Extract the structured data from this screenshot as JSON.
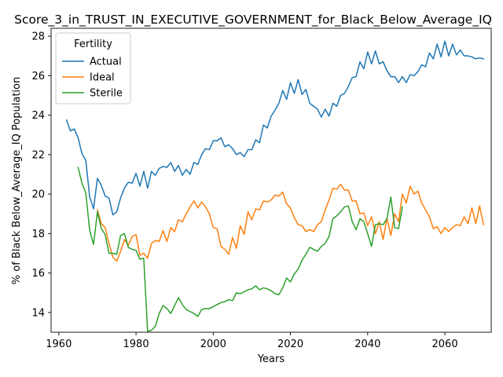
{
  "chart_data": {
    "type": "line",
    "title": "Score_3_in_TRUST_IN_EXECUTIVE_GOVERNMENT_for_Black_Below_Average_IQ",
    "xlabel": "Years",
    "ylabel": "% of Black Below_Average_IQ Population",
    "xlim": [
      1958,
      2072
    ],
    "ylim": [
      13.0,
      28.4
    ],
    "xticks": [
      1960,
      1980,
      2000,
      2020,
      2040,
      2060
    ],
    "yticks": [
      14,
      16,
      18,
      20,
      22,
      24,
      26,
      28
    ],
    "grid": false,
    "legend": {
      "title": "Fertility",
      "placement": "top-left"
    },
    "series": [
      {
        "name": "Actual",
        "color": "#1f77b4",
        "x": [
          1962,
          1963,
          1964,
          1965,
          1966,
          1967,
          1968,
          1969,
          1970,
          1971,
          1972,
          1973,
          1974,
          1975,
          1976,
          1977,
          1978,
          1979,
          1980,
          1981,
          1982,
          1983,
          1984,
          1985,
          1986,
          1987,
          1988,
          1989,
          1990,
          1991,
          1992,
          1993,
          1994,
          1995,
          1996,
          1997,
          1998,
          1999,
          2000,
          2001,
          2002,
          2003,
          2004,
          2005,
          2006,
          2007,
          2008,
          2009,
          2010,
          2011,
          2012,
          2013,
          2014,
          2015,
          2016,
          2017,
          2018,
          2019,
          2020,
          2021,
          2022,
          2023,
          2024,
          2025,
          2026,
          2027,
          2028,
          2029,
          2030,
          2031,
          2032,
          2033,
          2034,
          2035,
          2036,
          2037,
          2038,
          2039,
          2040,
          2041,
          2042,
          2043,
          2044,
          2045,
          2046,
          2047,
          2048,
          2049,
          2050,
          2051,
          2052,
          2053,
          2054,
          2055,
          2056,
          2057,
          2058,
          2059,
          2060,
          2061,
          2062,
          2063,
          2064,
          2065,
          2066,
          2067,
          2068,
          2069,
          2070
        ],
        "values": [
          23.75,
          23.2,
          23.3,
          22.85,
          22.05,
          21.7,
          19.85,
          19.25,
          20.8,
          20.45,
          19.9,
          19.8,
          18.95,
          19.1,
          19.8,
          20.3,
          20.6,
          20.55,
          21.05,
          20.4,
          21.15,
          20.3,
          21.15,
          20.95,
          21.3,
          21.4,
          21.35,
          21.6,
          21.15,
          21.45,
          20.95,
          21.25,
          21.0,
          21.6,
          21.5,
          22.0,
          22.3,
          22.25,
          22.7,
          22.7,
          22.85,
          22.4,
          22.5,
          22.3,
          22.0,
          22.1,
          21.9,
          22.25,
          22.25,
          22.75,
          22.6,
          23.5,
          23.35,
          23.95,
          24.25,
          24.6,
          25.25,
          24.8,
          25.65,
          25.1,
          25.8,
          25.05,
          25.3,
          24.6,
          24.45,
          24.3,
          23.9,
          24.3,
          23.95,
          24.6,
          24.45,
          25.0,
          25.1,
          25.45,
          25.9,
          25.95,
          26.7,
          26.35,
          27.2,
          26.6,
          27.25,
          26.6,
          26.7,
          26.25,
          25.95,
          25.95,
          25.65,
          25.95,
          25.65,
          26.05,
          26.0,
          26.2,
          26.55,
          26.45,
          27.15,
          26.85,
          27.6,
          26.95,
          27.75,
          27.0,
          27.6,
          27.05,
          27.3,
          27.0,
          27.0,
          26.95,
          26.85,
          26.9,
          26.85
        ]
      },
      {
        "name": "Ideal",
        "color": "#ff7f0e",
        "x": [
          1970,
          1971,
          1972,
          1973,
          1974,
          1975,
          1976,
          1977,
          1978,
          1979,
          1980,
          1981,
          1982,
          1983,
          1984,
          1985,
          1986,
          1987,
          1988,
          1989,
          1990,
          1991,
          1992,
          1993,
          1994,
          1995,
          1996,
          1997,
          1998,
          1999,
          2000,
          2001,
          2002,
          2003,
          2004,
          2005,
          2006,
          2007,
          2008,
          2009,
          2010,
          2011,
          2012,
          2013,
          2014,
          2015,
          2016,
          2017,
          2018,
          2019,
          2020,
          2021,
          2022,
          2023,
          2024,
          2025,
          2026,
          2027,
          2028,
          2029,
          2030,
          2031,
          2032,
          2033,
          2034,
          2035,
          2036,
          2037,
          2038,
          2039,
          2040,
          2041,
          2042,
          2043,
          2044,
          2045,
          2046,
          2047,
          2048,
          2049,
          2050,
          2051,
          2052,
          2053,
          2054,
          2055,
          2056,
          2057,
          2058,
          2059,
          2060,
          2061,
          2062,
          2063,
          2064,
          2065,
          2066,
          2067,
          2068,
          2069,
          2070
        ],
        "values": [
          19.2,
          18.5,
          18.3,
          17.5,
          16.8,
          16.6,
          17.1,
          17.7,
          17.4,
          17.85,
          17.95,
          16.9,
          17.0,
          16.75,
          17.5,
          17.65,
          17.6,
          18.15,
          17.6,
          18.3,
          18.1,
          18.7,
          18.6,
          19.0,
          19.35,
          19.65,
          19.3,
          19.6,
          19.35,
          19.0,
          18.3,
          18.25,
          17.35,
          17.2,
          16.95,
          17.8,
          17.25,
          18.4,
          17.95,
          19.1,
          18.7,
          19.25,
          19.2,
          19.65,
          19.6,
          19.7,
          19.95,
          19.9,
          20.1,
          19.5,
          19.3,
          18.8,
          18.45,
          18.4,
          18.1,
          18.2,
          18.1,
          18.45,
          18.6,
          19.2,
          19.7,
          20.3,
          20.25,
          20.5,
          20.2,
          20.2,
          19.65,
          19.65,
          19.0,
          19.05,
          18.4,
          18.85,
          18.0,
          18.6,
          17.7,
          18.8,
          17.9,
          19.0,
          18.6,
          20.0,
          19.55,
          20.4,
          20.0,
          20.15,
          19.55,
          19.2,
          18.85,
          18.25,
          18.35,
          18.0,
          18.3,
          18.1,
          18.3,
          18.45,
          18.4,
          18.85,
          18.5,
          19.3,
          18.5,
          19.4,
          18.45
        ]
      },
      {
        "name": "Sterile",
        "color": "#2ca02c",
        "x": [
          1965,
          1966,
          1967,
          1968,
          1969,
          1970,
          1971,
          1972,
          1973,
          1974,
          1975,
          1976,
          1977,
          1978,
          1979,
          1980,
          1981,
          1982,
          1983,
          1984,
          1985,
          1986,
          1987,
          1988,
          1989,
          1990,
          1991,
          1992,
          1993,
          1994,
          1995,
          1996,
          1997,
          1998,
          1999,
          2000,
          2001,
          2002,
          2003,
          2004,
          2005,
          2006,
          2007,
          2008,
          2009,
          2010,
          2011,
          2012,
          2013,
          2014,
          2015,
          2016,
          2017,
          2018,
          2019,
          2020,
          2021,
          2022,
          2023,
          2024,
          2025,
          2026,
          2027,
          2028,
          2029,
          2030,
          2031,
          2032,
          2033,
          2034,
          2035,
          2036,
          2037,
          2038,
          2039,
          2040,
          2041,
          2042,
          2043,
          2044,
          2045,
          2046,
          2047,
          2048,
          2049
        ],
        "values": [
          21.35,
          20.55,
          20.05,
          18.15,
          17.45,
          19.1,
          18.25,
          17.95,
          17.0,
          17.0,
          16.95,
          17.9,
          18.0,
          17.3,
          17.2,
          17.15,
          16.7,
          16.75,
          13.05,
          13.1,
          13.3,
          13.95,
          14.35,
          14.2,
          13.95,
          14.35,
          14.75,
          14.4,
          14.15,
          14.05,
          13.95,
          13.8,
          14.15,
          14.2,
          14.2,
          14.3,
          14.4,
          14.5,
          14.55,
          14.65,
          14.6,
          15.0,
          14.95,
          15.05,
          15.15,
          15.2,
          15.35,
          15.15,
          15.25,
          15.2,
          15.1,
          14.95,
          14.9,
          15.25,
          15.75,
          15.55,
          15.95,
          16.2,
          16.65,
          16.95,
          17.3,
          17.2,
          17.1,
          17.35,
          17.5,
          17.85,
          18.75,
          18.9,
          19.1,
          19.35,
          19.4,
          18.6,
          18.2,
          18.75,
          18.6,
          18.0,
          17.35,
          18.45,
          18.5,
          18.45,
          18.75,
          19.85,
          18.3,
          18.25,
          19.35
        ]
      }
    ]
  }
}
